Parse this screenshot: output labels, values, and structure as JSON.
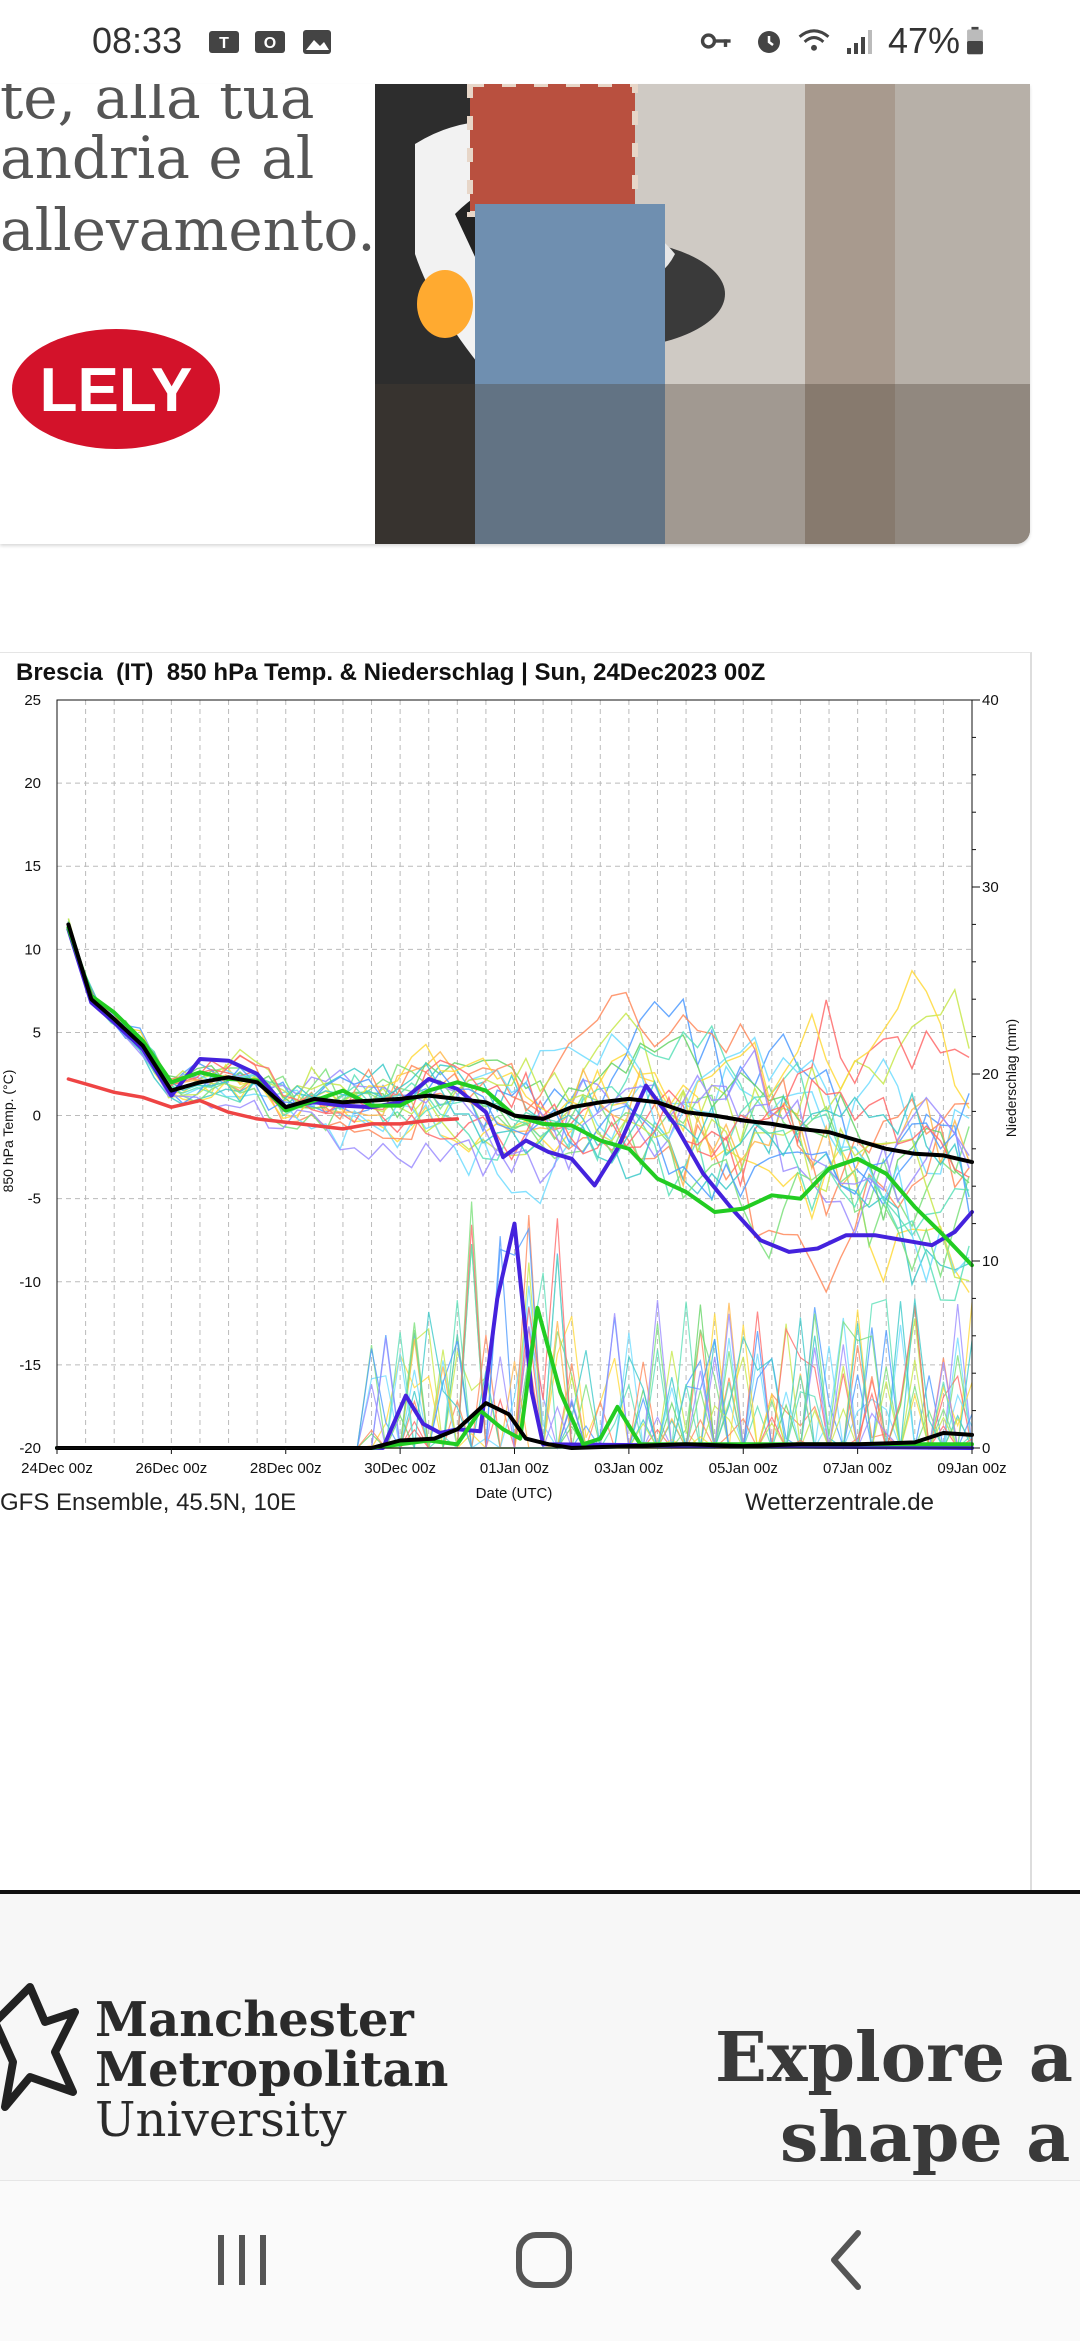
{
  "status_bar": {
    "time": "08:33",
    "battery_percent": "47%",
    "left_icons": [
      "teams-icon",
      "outlook-icon",
      "gallery-icon"
    ],
    "right_icons": [
      "vpn-key-icon",
      "alarm-icon",
      "wifi-icon",
      "signal-icon",
      "battery-icon"
    ]
  },
  "ad_top": {
    "lines": [
      "te, alla tua",
      "andria e al",
      "allevamento."
    ],
    "logo_text": "LELY",
    "brand_color": "#d3122a"
  },
  "chart_data": {
    "type": "line",
    "title": "Brescia  (IT)  850 hPa Temp. & Niederschlag | Sun, 24Dec2023 00Z",
    "xlabel": "Date (UTC)",
    "ylabel_left": "850 hPa Temp. (°C)",
    "ylabel_right": "Niederschlag (mm)",
    "x_tick_labels": [
      "24Dec 00z",
      "26Dec 00z",
      "28Dec 00z",
      "30Dec 00z",
      "01Jan 00z",
      "03Jan 00z",
      "05Jan 00z",
      "07Jan 00z",
      "09Jan 00z"
    ],
    "x_range_days": [
      0,
      16
    ],
    "ylim_left": [
      -20,
      25
    ],
    "yticks_left": [
      "25",
      "20",
      "15",
      "10",
      "5",
      "0",
      "-5",
      "-10",
      "-15",
      "-20"
    ],
    "ylim_right": [
      0,
      40
    ],
    "yticks_right": [
      "40",
      "30",
      "20",
      "10",
      "0"
    ],
    "grid": true,
    "source_left": "GFS Ensemble, 45.5N, 10E",
    "source_right": "Wetterzentrale.de",
    "series": [
      {
        "role": "temperature-mean",
        "color": "#000000",
        "points": [
          [
            0.2,
            11.5
          ],
          [
            0.6,
            7
          ],
          [
            1,
            5.8
          ],
          [
            1.5,
            4.2
          ],
          [
            2,
            1.5
          ],
          [
            2.5,
            2
          ],
          [
            3,
            2.3
          ],
          [
            3.5,
            2
          ],
          [
            4,
            0.5
          ],
          [
            4.5,
            1
          ],
          [
            5,
            0.8
          ],
          [
            5.5,
            0.9
          ],
          [
            6,
            1
          ],
          [
            6.5,
            1.2
          ],
          [
            7,
            1
          ],
          [
            7.5,
            0.8
          ],
          [
            8,
            0
          ],
          [
            8.5,
            -0.2
          ],
          [
            9,
            0.5
          ],
          [
            9.5,
            0.8
          ],
          [
            10,
            1
          ],
          [
            10.5,
            0.8
          ],
          [
            11,
            0.2
          ],
          [
            11.5,
            0
          ],
          [
            12,
            -0.3
          ],
          [
            12.5,
            -0.5
          ],
          [
            13,
            -0.8
          ],
          [
            13.5,
            -1
          ],
          [
            14,
            -1.5
          ],
          [
            14.5,
            -2
          ],
          [
            15,
            -2.3
          ],
          [
            15.5,
            -2.4
          ],
          [
            16,
            -2.8
          ]
        ]
      },
      {
        "role": "temperature-control",
        "color": "#22cc22",
        "points": [
          [
            0.2,
            11.3
          ],
          [
            0.6,
            7.2
          ],
          [
            1,
            6.2
          ],
          [
            1.5,
            4.5
          ],
          [
            2,
            2
          ],
          [
            2.5,
            2.6
          ],
          [
            3,
            2.2
          ],
          [
            3.5,
            2.1
          ],
          [
            4,
            0.3
          ],
          [
            4.5,
            0.9
          ],
          [
            5,
            1.5
          ],
          [
            5.5,
            0.6
          ],
          [
            6,
            0.6
          ],
          [
            6.5,
            1.5
          ],
          [
            7,
            2
          ],
          [
            7.5,
            1.5
          ],
          [
            8,
            0
          ],
          [
            8.5,
            -0.5
          ],
          [
            9,
            -0.6
          ],
          [
            9.5,
            -1.5
          ],
          [
            10,
            -2
          ],
          [
            10.5,
            -3.8
          ],
          [
            11,
            -4.6
          ],
          [
            11.5,
            -5.8
          ],
          [
            12,
            -5.6
          ],
          [
            12.5,
            -4.8
          ],
          [
            13,
            -5
          ],
          [
            13.5,
            -3.2
          ],
          [
            14,
            -2.6
          ],
          [
            14.5,
            -3.5
          ],
          [
            15,
            -5.5
          ],
          [
            15.5,
            -7.2
          ],
          [
            16,
            -9
          ]
        ]
      },
      {
        "role": "temperature-operational",
        "color": "#4422dd",
        "points": [
          [
            0.2,
            11.2
          ],
          [
            0.6,
            6.8
          ],
          [
            1,
            5.6
          ],
          [
            1.5,
            4
          ],
          [
            2,
            1.2
          ],
          [
            2.5,
            3.4
          ],
          [
            3,
            3.3
          ],
          [
            3.5,
            2.5
          ],
          [
            4,
            0.5
          ],
          [
            4.5,
            0.8
          ],
          [
            5,
            0.6
          ],
          [
            5.5,
            0.5
          ],
          [
            6,
            0.8
          ],
          [
            6.5,
            2.2
          ],
          [
            7,
            1.6
          ],
          [
            7.5,
            0.2
          ],
          [
            7.8,
            -2.5
          ],
          [
            8.2,
            -1.5
          ],
          [
            8.6,
            -2.2
          ],
          [
            9,
            -2.6
          ],
          [
            9.4,
            -4.2
          ],
          [
            9.8,
            -2
          ],
          [
            10.3,
            1.8
          ],
          [
            10.8,
            -0.5
          ],
          [
            11.3,
            -3.5
          ],
          [
            11.8,
            -5.6
          ],
          [
            12.3,
            -7.5
          ],
          [
            12.8,
            -8.2
          ],
          [
            13.3,
            -8
          ],
          [
            13.8,
            -7.2
          ],
          [
            14.3,
            -7.2
          ],
          [
            14.8,
            -7.5
          ],
          [
            15.3,
            -7.8
          ],
          [
            15.7,
            -7
          ],
          [
            16,
            -5.8
          ]
        ]
      },
      {
        "role": "temperature-climate",
        "color": "#ee4444",
        "points": [
          [
            0.2,
            2.2
          ],
          [
            0.6,
            1.8
          ],
          [
            1,
            1.4
          ],
          [
            1.5,
            1.1
          ],
          [
            2,
            0.5
          ],
          [
            2.5,
            0.9
          ],
          [
            3,
            0.2
          ],
          [
            3.5,
            -0.2
          ],
          [
            4,
            -0.4
          ],
          [
            4.5,
            -0.6
          ],
          [
            5,
            -0.8
          ],
          [
            5.5,
            -0.5
          ],
          [
            6,
            -0.5
          ],
          [
            6.5,
            -0.3
          ],
          [
            7,
            -0.2
          ]
        ]
      },
      {
        "role": "precip-mean",
        "color": "#000000",
        "points": [
          [
            0,
            0
          ],
          [
            5.5,
            0
          ],
          [
            6,
            0.4
          ],
          [
            6.6,
            0.5
          ],
          [
            7,
            1
          ],
          [
            7.5,
            2.4
          ],
          [
            7.9,
            1.8
          ],
          [
            8.2,
            0.5
          ],
          [
            8.6,
            0.2
          ],
          [
            9,
            0
          ],
          [
            10,
            0.1
          ],
          [
            11,
            0.2
          ],
          [
            12,
            0.1
          ],
          [
            13,
            0.2
          ],
          [
            14,
            0.2
          ],
          [
            15,
            0.3
          ],
          [
            15.5,
            0.8
          ],
          [
            16,
            0.7
          ]
        ]
      },
      {
        "role": "precip-control",
        "color": "#22cc22",
        "points": [
          [
            0,
            0
          ],
          [
            5.5,
            0
          ],
          [
            6,
            0.2
          ],
          [
            6.5,
            0.4
          ],
          [
            7,
            0.2
          ],
          [
            7.4,
            2
          ],
          [
            7.8,
            1
          ],
          [
            8.1,
            0.5
          ],
          [
            8.4,
            7.5
          ],
          [
            8.8,
            3
          ],
          [
            9.2,
            0.2
          ],
          [
            9.5,
            0.5
          ],
          [
            9.8,
            2.2
          ],
          [
            10.2,
            0.2
          ],
          [
            16,
            0.2
          ]
        ]
      },
      {
        "role": "precip-operational",
        "color": "#4422dd",
        "points": [
          [
            0,
            0
          ],
          [
            5.7,
            0
          ],
          [
            6.1,
            2.8
          ],
          [
            6.4,
            1.3
          ],
          [
            6.7,
            0.8
          ],
          [
            7,
            1
          ],
          [
            7.4,
            0.9
          ],
          [
            7.7,
            8
          ],
          [
            8,
            12
          ],
          [
            8.3,
            3
          ],
          [
            8.5,
            0.2
          ],
          [
            16,
            0
          ]
        ]
      }
    ]
  },
  "ad_bottom": {
    "logo_lines": [
      "Manchester",
      "Metropolitan",
      "University"
    ],
    "tagline_lines": [
      "Explore a",
      "shape a"
    ]
  },
  "nav_bar": {
    "buttons": [
      "recent-apps",
      "home",
      "back"
    ]
  }
}
